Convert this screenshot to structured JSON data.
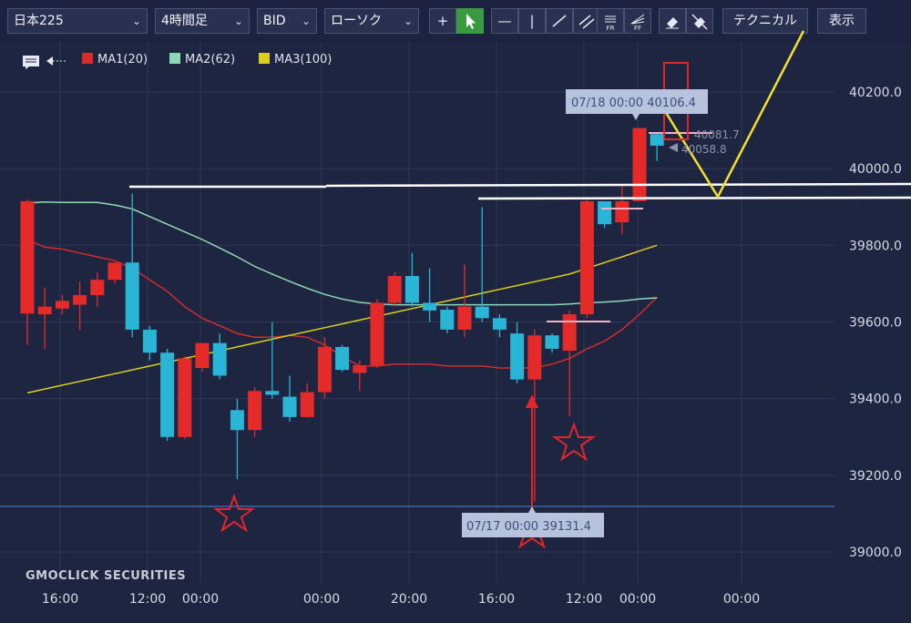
{
  "toolbar": {
    "symbol": "日本225",
    "period": "4時間足",
    "price_type": "BID",
    "chart_style": "ローソク",
    "crosshair_icon": "crosshair-icon",
    "pointer_icon": "pointer-icon",
    "hline_icon": "horizontal-line-icon",
    "vline_icon": "vertical-line-icon",
    "trendline_icon": "trend-line-icon",
    "channel_icon": "channel-icon",
    "fr_label": "FR",
    "ff_label": "FF",
    "eraser_icon": "eraser-icon",
    "erase_all_icon": "erase-all-icon",
    "technical_label": "テクニカル",
    "display_label": "表示"
  },
  "legend": {
    "comment_icon": "comment-icon",
    "back_icon": "back-arrow-icon",
    "ma1": "MA1(20)",
    "ma2": "MA2(62)",
    "ma3": "MA3(100)"
  },
  "colors": {
    "ma1": "#d42b2b",
    "ma2": "#8fd8b4",
    "ma3": "#d9cf1e",
    "up": "#e52a2a",
    "down": "#2ab5d6"
  },
  "brand": "GMOCLICK SECURITIES",
  "chart_data": {
    "type": "candlestick",
    "y_ticks": [
      "40200.0",
      "40000.0",
      "39800.0",
      "39600.0",
      "39400.0",
      "39200.0",
      "39000.0"
    ],
    "x_ticks": [
      "16:00",
      "12:00",
      "00:00",
      "00:00",
      "20:00",
      "16:00",
      "12:00",
      "00:00",
      "00:00"
    ],
    "ylim": [
      38960,
      40290
    ],
    "annotations": {
      "high_label": "07/18 00:00 40106.4",
      "low_label": "07/17 00:00 39131.4",
      "price_a": "40081.7",
      "price_b": "40058.8"
    },
    "candles": [
      {
        "o": 39622,
        "c": 39915,
        "h": 39920,
        "l": 39540
      },
      {
        "o": 39620,
        "c": 39640,
        "h": 39690,
        "l": 39530
      },
      {
        "o": 39635,
        "c": 39655,
        "h": 39670,
        "l": 39620
      },
      {
        "o": 39645,
        "c": 39670,
        "h": 39705,
        "l": 39580
      },
      {
        "o": 39670,
        "c": 39710,
        "h": 39730,
        "l": 39640
      },
      {
        "o": 39710,
        "c": 39755,
        "h": 39755,
        "l": 39700
      },
      {
        "o": 39755,
        "c": 39580,
        "h": 39935,
        "l": 39560
      },
      {
        "o": 39580,
        "c": 39520,
        "h": 39590,
        "l": 39500
      },
      {
        "o": 39520,
        "c": 39300,
        "h": 39530,
        "l": 39290
      },
      {
        "o": 39300,
        "c": 39505,
        "h": 39510,
        "l": 39295
      },
      {
        "o": 39480,
        "c": 39545,
        "h": 39545,
        "l": 39470
      },
      {
        "o": 39545,
        "c": 39460,
        "h": 39570,
        "l": 39450
      },
      {
        "o": 39370,
        "c": 39318,
        "h": 39400,
        "l": 39190
      },
      {
        "o": 39318,
        "c": 39420,
        "h": 39430,
        "l": 39300
      },
      {
        "o": 39420,
        "c": 39410,
        "h": 39600,
        "l": 39400
      },
      {
        "o": 39405,
        "c": 39352,
        "h": 39460,
        "l": 39340
      },
      {
        "o": 39352,
        "c": 39417,
        "h": 39440,
        "l": 39350
      },
      {
        "o": 39417,
        "c": 39535,
        "h": 39560,
        "l": 39400
      },
      {
        "o": 39535,
        "c": 39475,
        "h": 39540,
        "l": 39470
      },
      {
        "o": 39467,
        "c": 39487,
        "h": 39500,
        "l": 39420
      },
      {
        "o": 39487,
        "c": 39650,
        "h": 39660,
        "l": 39480
      },
      {
        "o": 39650,
        "c": 39720,
        "h": 39730,
        "l": 39640
      },
      {
        "o": 39720,
        "c": 39650,
        "h": 39780,
        "l": 39640
      },
      {
        "o": 39650,
        "c": 39630,
        "h": 39740,
        "l": 39600
      },
      {
        "o": 39632,
        "c": 39580,
        "h": 39640,
        "l": 39570
      },
      {
        "o": 39580,
        "c": 39640,
        "h": 39750,
        "l": 39560
      },
      {
        "o": 39640,
        "c": 39610,
        "h": 39900,
        "l": 39600
      },
      {
        "o": 39610,
        "c": 39580,
        "h": 39620,
        "l": 39560
      },
      {
        "o": 39570,
        "c": 39450,
        "h": 39600,
        "l": 39440
      },
      {
        "o": 39450,
        "c": 39565,
        "h": 39580,
        "l": 39131
      },
      {
        "o": 39565,
        "c": 39530,
        "h": 39570,
        "l": 39520
      },
      {
        "o": 39525,
        "c": 39620,
        "h": 39630,
        "l": 39355
      },
      {
        "o": 39620,
        "c": 39915,
        "h": 39920,
        "l": 39610
      },
      {
        "o": 39915,
        "c": 39855,
        "h": 39915,
        "l": 39845
      },
      {
        "o": 39860,
        "c": 39915,
        "h": 39960,
        "l": 39830
      },
      {
        "o": 39915,
        "c": 40106,
        "h": 40106,
        "l": 39915
      },
      {
        "o": 40090,
        "c": 40060,
        "h": 40095,
        "l": 40020
      }
    ],
    "series": [
      {
        "name": "MA1(20)",
        "values": [
          39815,
          39795,
          39790,
          39780,
          39770,
          39760,
          39740,
          39710,
          39680,
          39640,
          39610,
          39590,
          39570,
          39560,
          39560,
          39565,
          39560,
          39540,
          39510,
          39485,
          39485,
          39490,
          39490,
          39490,
          39485,
          39485,
          39485,
          39480,
          39480,
          39480,
          39490,
          39505,
          39530,
          39550,
          39580,
          39620,
          39665
        ]
      },
      {
        "name": "MA2(62)",
        "values": [
          39910,
          39913,
          39912,
          39912,
          39912,
          39905,
          39895,
          39875,
          39855,
          39835,
          39815,
          39793,
          39770,
          39745,
          39725,
          39706,
          39688,
          39672,
          39660,
          39651,
          39647,
          39645,
          39645,
          39645,
          39645,
          39645,
          39645,
          39645,
          39645,
          39645,
          39645,
          39647,
          39650,
          39652,
          39655,
          39660,
          39663
        ]
      },
      {
        "name": "MA3(100)",
        "values": [
          39415,
          39425,
          39435,
          39445,
          39455,
          39465,
          39475,
          39485,
          39495,
          39505,
          39515,
          39525,
          39535,
          39545,
          39555,
          39565,
          39575,
          39585,
          39595,
          39605,
          39615,
          39625,
          39635,
          39645,
          39655,
          39665,
          39675,
          39685,
          39695,
          39705,
          39715,
          39725,
          39740,
          39755,
          39770,
          39785,
          39800
        ]
      }
    ]
  }
}
